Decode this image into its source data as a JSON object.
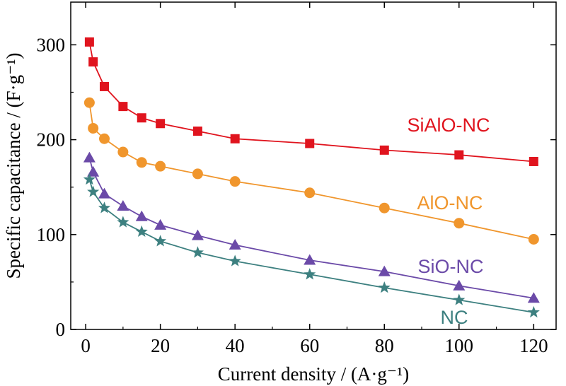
{
  "chart_data": {
    "type": "line",
    "xlabel": "Current density / (A·g⁻¹)",
    "ylabel": "Specific capacitance / (F·g⁻¹)",
    "xlim": [
      -4,
      126
    ],
    "ylim": [
      0,
      345
    ],
    "xticks": [
      0,
      20,
      40,
      60,
      80,
      100,
      120
    ],
    "yticks": [
      0,
      100,
      200,
      300
    ],
    "grid": false,
    "legend": "inline labels",
    "series": [
      {
        "name": "SiAlO-NC",
        "color": "#e0141e",
        "marker": "square",
        "x": [
          1,
          2,
          5,
          10,
          15,
          20,
          30,
          40,
          60,
          80,
          100,
          120
        ],
        "y": [
          303,
          282,
          256,
          235,
          223,
          217,
          209,
          201,
          196,
          189,
          184,
          177
        ]
      },
      {
        "name": "AlO-NC",
        "color": "#f0962d",
        "marker": "circle",
        "x": [
          1,
          2,
          5,
          10,
          15,
          20,
          30,
          40,
          60,
          80,
          100,
          120
        ],
        "y": [
          239,
          212,
          201,
          187,
          176,
          172,
          164,
          156,
          144,
          128,
          112,
          95
        ]
      },
      {
        "name": "SiO-NC",
        "color": "#6b4aa8",
        "marker": "triangle",
        "x": [
          1,
          2,
          5,
          10,
          15,
          20,
          30,
          40,
          60,
          80,
          100,
          120
        ],
        "y": [
          181,
          166,
          143,
          130,
          119,
          110,
          99,
          89,
          73,
          61,
          46,
          33
        ]
      },
      {
        "name": "NC",
        "color": "#3d8080",
        "marker": "star",
        "x": [
          1,
          2,
          5,
          10,
          15,
          20,
          30,
          40,
          60,
          80,
          100,
          120
        ],
        "y": [
          158,
          145,
          128,
          113,
          103,
          93,
          81,
          72,
          58,
          44,
          31,
          18
        ]
      }
    ]
  }
}
